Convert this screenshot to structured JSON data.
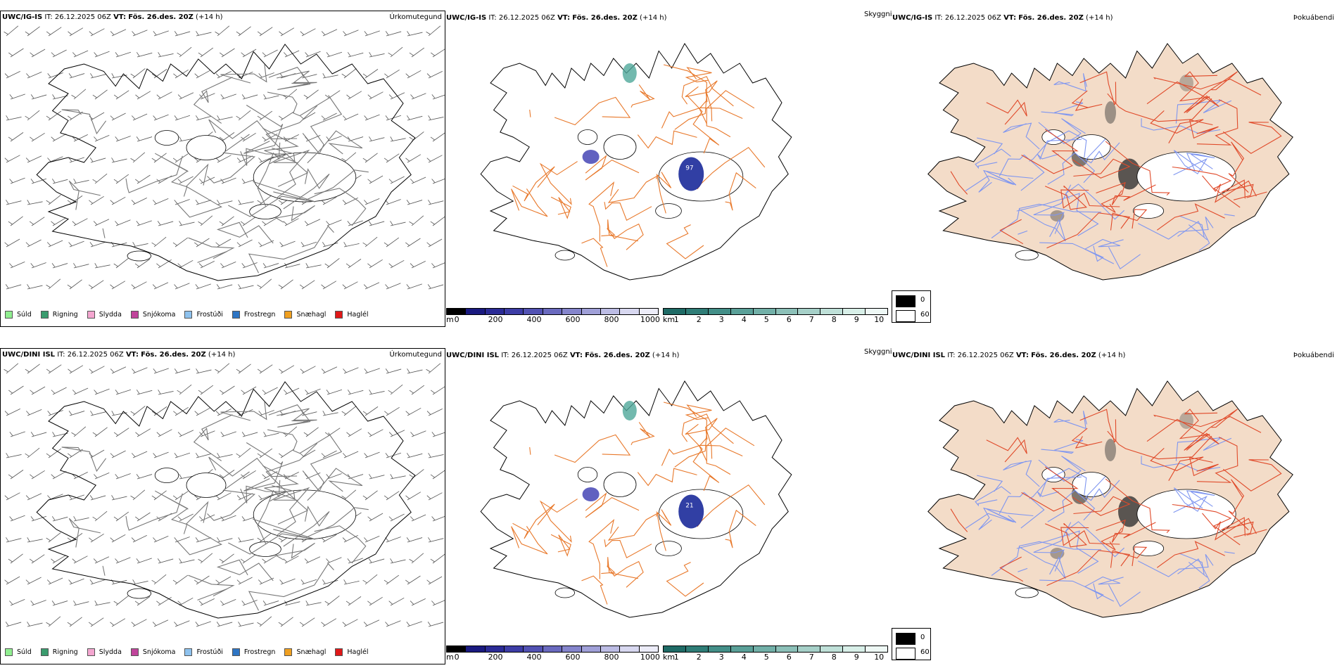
{
  "rows": [
    {
      "model": "UWC/IG-IS",
      "it_label": "IT:",
      "it_value": "26.12.2025 06Z",
      "vt_label": "VT:",
      "vt_value": "Fös. 26.des. 20Z",
      "lead": "(+14 h)",
      "panel_titles": [
        "Úrkomutegund",
        "Skyggni",
        "Þokuábendi"
      ],
      "snow_depth_label": "97"
    },
    {
      "model": "UWC/DINI ISL",
      "it_label": "IT:",
      "it_value": "26.12.2025 06Z",
      "vt_label": "VT:",
      "vt_value": "Fös. 26.des. 20Z",
      "lead": "(+14 h)",
      "panel_titles": [
        "Úrkomutegund",
        "Skyggni",
        "Þokuábendi"
      ],
      "snow_depth_label": "21"
    }
  ],
  "precip_legend": [
    {
      "label": "Súld",
      "color": "#90ee90"
    },
    {
      "label": "Rigning",
      "color": "#3a9b6e"
    },
    {
      "label": "Slydda",
      "color": "#f4a6d0"
    },
    {
      "label": "Snjókoma",
      "color": "#c0449b"
    },
    {
      "label": "Frostúði",
      "color": "#8ec2ee"
    },
    {
      "label": "Frostregn",
      "color": "#2e75c4"
    },
    {
      "label": "Snæhagl",
      "color": "#f0a020"
    },
    {
      "label": "Haglél",
      "color": "#e01818"
    }
  ],
  "elevation_bar": {
    "unit": "m",
    "ticks": [
      "0",
      "200",
      "400",
      "600",
      "800",
      "1000"
    ],
    "colors": [
      "#000000",
      "#1a1a80",
      "#2b2b96",
      "#3d3da6",
      "#5252b3",
      "#6a6abf",
      "#8585cc",
      "#a0a0d8",
      "#bcbce4",
      "#d8d8f0",
      "#ececf8"
    ]
  },
  "visibility_bar": {
    "unit": "km",
    "ticks": [
      "1",
      "2",
      "3",
      "4",
      "5",
      "6",
      "7",
      "8",
      "9",
      "10"
    ],
    "colors": [
      "#1f6b66",
      "#2f7d77",
      "#438f88",
      "#5aa098",
      "#72b0a8",
      "#8cc0b8",
      "#a6d0c8",
      "#bfe0d8",
      "#d8efe8",
      "#eef8f5"
    ]
  },
  "fog_legend": [
    {
      "label": "0",
      "color": "#000000"
    },
    {
      "label": "60",
      "color": "#ffffff"
    }
  ],
  "colors": {
    "road": "#e8782a",
    "land_fill": "#f3dcc8",
    "river": "#7f96f0",
    "road_red": "#e04a2a",
    "snow": "#1b2a9a"
  }
}
